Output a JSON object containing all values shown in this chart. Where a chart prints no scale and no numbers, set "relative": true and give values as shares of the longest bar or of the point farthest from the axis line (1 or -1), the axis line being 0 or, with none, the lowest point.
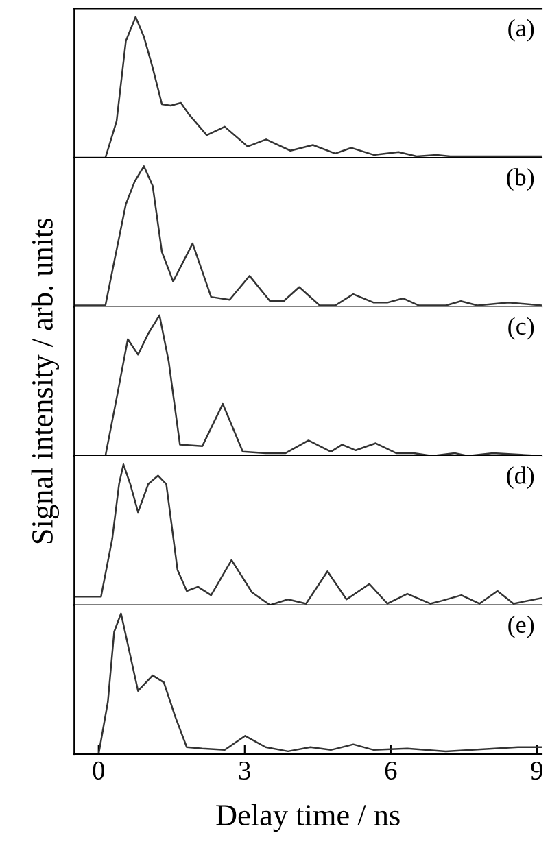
{
  "chart_data": [
    {
      "type": "line",
      "relative": true,
      "xlim": [
        -0.5,
        9.1
      ],
      "tick_labels": false,
      "annotations": [
        "(a)"
      ],
      "line_style": "solid",
      "marker": "none",
      "series": [
        {
          "color": "#333333",
          "x": [
            -0.5,
            0.14,
            0.37,
            0.56,
            0.76,
            0.93,
            1.11,
            1.3,
            1.48,
            1.69,
            1.85,
            2.22,
            2.59,
            3.06,
            3.44,
            3.94,
            4.4,
            4.86,
            5.19,
            5.65,
            6.16,
            6.53,
            6.94,
            7.22,
            8.6,
            9.1
          ],
          "values": [
            0,
            0,
            0.26,
            0.83,
            1.0,
            0.86,
            0.64,
            0.38,
            0.37,
            0.39,
            0.31,
            0.16,
            0.22,
            0.08,
            0.13,
            0.05,
            0.09,
            0.03,
            0.07,
            0.02,
            0.04,
            0.01,
            0.02,
            0.01,
            0.01,
            0.01
          ]
        }
      ]
    },
    {
      "type": "line",
      "relative": true,
      "xlim": [
        -0.5,
        9.1
      ],
      "tick_labels": false,
      "annotations": [
        "(b)"
      ],
      "line_style": "solid",
      "marker": "none",
      "series": [
        {
          "color": "#333333",
          "x": [
            -0.5,
            0.14,
            0.32,
            0.56,
            0.74,
            0.93,
            1.11,
            1.3,
            1.53,
            1.93,
            2.31,
            2.69,
            3.1,
            3.52,
            3.8,
            4.12,
            4.54,
            4.86,
            5.23,
            5.65,
            5.93,
            6.25,
            6.57,
            7.13,
            7.44,
            7.78,
            8.42,
            9.1
          ],
          "values": [
            0.01,
            0.01,
            0.32,
            0.73,
            0.89,
            1.0,
            0.86,
            0.39,
            0.18,
            0.45,
            0.07,
            0.05,
            0.22,
            0.04,
            0.04,
            0.14,
            0.01,
            0.01,
            0.09,
            0.03,
            0.03,
            0.06,
            0.01,
            0.01,
            0.04,
            0.01,
            0.03,
            0.01
          ]
        }
      ]
    },
    {
      "type": "line",
      "relative": true,
      "xlim": [
        -0.5,
        9.1
      ],
      "tick_labels": false,
      "annotations": [
        "(c)"
      ],
      "ylabel": "Signal intensity / arb. units",
      "line_style": "solid",
      "marker": "none",
      "series": [
        {
          "color": "#333333",
          "x": [
            -0.5,
            0.14,
            0.37,
            0.6,
            0.81,
            1.02,
            1.25,
            1.44,
            1.67,
            2.13,
            2.55,
            2.96,
            3.43,
            3.84,
            4.31,
            4.77,
            5.0,
            5.28,
            5.69,
            6.11,
            6.47,
            6.85,
            7.31,
            7.58,
            8.1,
            9.1
          ],
          "values": [
            0,
            0,
            0.41,
            0.83,
            0.72,
            0.87,
            1.0,
            0.67,
            0.08,
            0.07,
            0.37,
            0.03,
            0.02,
            0.02,
            0.11,
            0.03,
            0.08,
            0.04,
            0.09,
            0.02,
            0.02,
            0,
            0.02,
            0,
            0.02,
            0
          ]
        }
      ]
    },
    {
      "type": "line",
      "relative": true,
      "xlim": [
        -0.5,
        9.1
      ],
      "tick_labels": false,
      "annotations": [
        "(d)"
      ],
      "line_style": "solid",
      "marker": "none",
      "series": [
        {
          "color": "#333333",
          "x": [
            -0.5,
            0.05,
            0.28,
            0.42,
            0.51,
            0.65,
            0.81,
            1.02,
            1.22,
            1.39,
            1.62,
            1.81,
            2.04,
            2.31,
            2.73,
            3.15,
            3.52,
            3.89,
            4.26,
            4.7,
            5.09,
            5.56,
            5.93,
            6.34,
            6.81,
            7.04,
            7.45,
            7.82,
            8.19,
            8.52,
            9.1
          ],
          "values": [
            0.06,
            0.06,
            0.47,
            0.86,
            1.0,
            0.86,
            0.66,
            0.86,
            0.92,
            0.86,
            0.25,
            0.1,
            0.13,
            0.07,
            0.32,
            0.09,
            0,
            0.04,
            0.01,
            0.24,
            0.04,
            0.15,
            0.01,
            0.08,
            0.01,
            0.03,
            0.07,
            0.01,
            0.1,
            0.01,
            0.05
          ]
        }
      ]
    },
    {
      "type": "line",
      "relative": true,
      "xlim": [
        -0.5,
        9.1
      ],
      "xticks": [
        0,
        3,
        6,
        9
      ],
      "tick_labels": "x",
      "annotations": [
        "(e)"
      ],
      "xlabel": "Delay time / ns",
      "line_style": "solid",
      "marker": "none",
      "series": [
        {
          "color": "#333333",
          "x": [
            -0.5,
            0.0,
            0.19,
            0.32,
            0.46,
            0.6,
            0.81,
            1.11,
            1.34,
            1.57,
            1.81,
            2.13,
            2.59,
            3.01,
            3.43,
            3.89,
            4.35,
            4.77,
            5.23,
            5.65,
            6.34,
            7.13,
            8.61,
            9.1
          ],
          "values": [
            0,
            0,
            0.37,
            0.87,
            1.0,
            0.78,
            0.45,
            0.56,
            0.51,
            0.27,
            0.05,
            0.04,
            0.03,
            0.13,
            0.05,
            0.02,
            0.05,
            0.03,
            0.07,
            0.03,
            0.04,
            0.02,
            0.05,
            0.05
          ]
        }
      ]
    }
  ]
}
